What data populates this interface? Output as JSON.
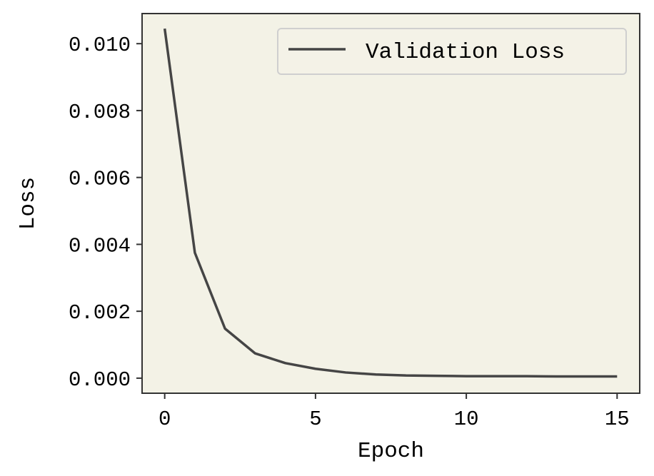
{
  "chart_data": {
    "type": "line",
    "title": "",
    "xlabel": "Epoch",
    "ylabel": "Loss",
    "xlim": [
      -0.75,
      15.75
    ],
    "ylim": [
      -0.00045,
      0.0109
    ],
    "xticks": [
      0,
      5,
      10,
      15
    ],
    "yticks": [
      0.0,
      0.002,
      0.004,
      0.006,
      0.008,
      0.01
    ],
    "xtick_labels": [
      "0",
      "5",
      "10",
      "15"
    ],
    "ytick_labels": [
      "0.000",
      "0.002",
      "0.004",
      "0.006",
      "0.008",
      "0.010"
    ],
    "grid": false,
    "legend": "top-right",
    "colors": {
      "plot_background": "#f3f2e6",
      "line": "#454545",
      "legend_border": "#cfcfcf"
    },
    "series": [
      {
        "name": "Validation Loss",
        "x": [
          0,
          1,
          2,
          3,
          4,
          5,
          6,
          7,
          8,
          9,
          10,
          11,
          12,
          13,
          14,
          15
        ],
        "values": [
          0.01045,
          0.00375,
          0.00148,
          0.00074,
          0.00045,
          0.00028,
          0.00017,
          0.00011,
          8e-05,
          7e-05,
          6e-05,
          6e-05,
          6e-05,
          5e-05,
          5e-05,
          5e-05
        ]
      }
    ]
  }
}
